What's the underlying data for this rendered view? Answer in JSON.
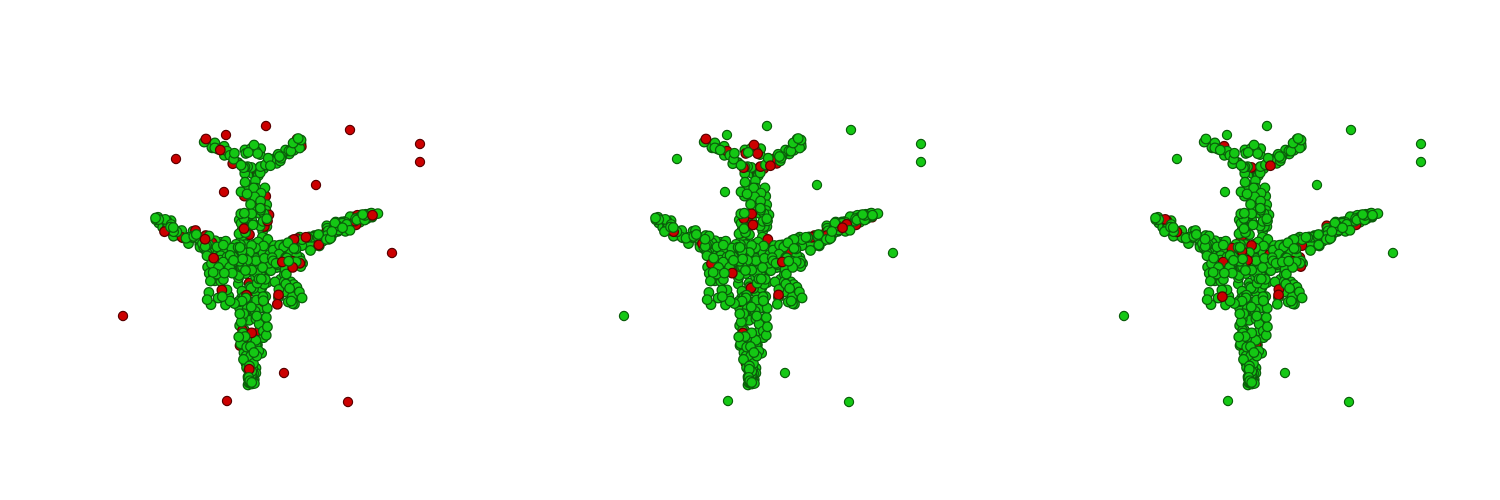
{
  "figure": {
    "panels": [
      {
        "id": "panel-1",
        "outlier_color": "#cc0000",
        "surface_color": "#14c814",
        "outliers_highlighted": true
      },
      {
        "id": "panel-2",
        "outlier_color": "#14c814",
        "surface_color": "#14c814",
        "outliers_highlighted": false
      },
      {
        "id": "panel-3",
        "outlier_color": "#14c814",
        "surface_color": "#14c814",
        "outliers_highlighted": false
      }
    ],
    "colors": {
      "green": "#14c814",
      "red": "#cc0000",
      "background": "#ffffff"
    }
  }
}
